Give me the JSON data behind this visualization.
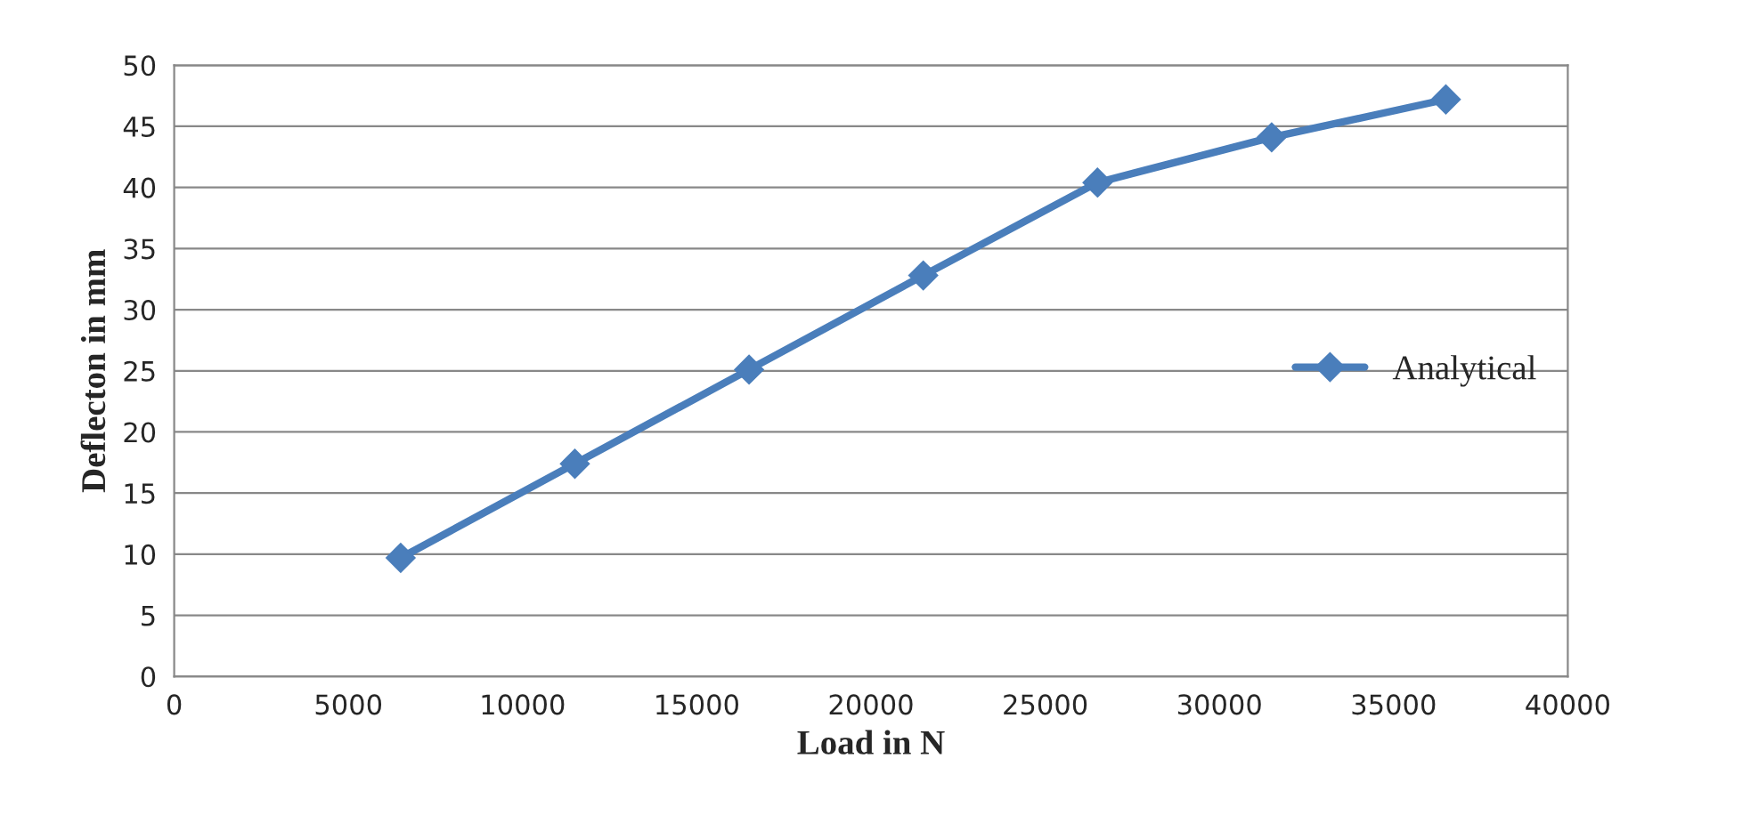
{
  "chart_data": {
    "type": "line",
    "xlabel": "Load in N",
    "ylabel": "Deflecton in mm",
    "x": [
      6500,
      11500,
      16500,
      21500,
      26500,
      31500,
      36500
    ],
    "series": [
      {
        "name": "Analytical",
        "color": "#4a7ebb",
        "values": [
          9.7,
          17.4,
          25.1,
          32.8,
          40.4,
          44.1,
          47.2
        ]
      }
    ],
    "xlim": [
      0,
      40000
    ],
    "xticks": [
      0,
      5000,
      10000,
      15000,
      20000,
      25000,
      30000,
      35000,
      40000
    ],
    "ylim": [
      0,
      50
    ],
    "yticks": [
      0,
      5,
      10,
      15,
      20,
      25,
      30,
      35,
      40,
      45,
      50
    ],
    "grid": "y",
    "legend": "right",
    "marker": "diamond",
    "line_style": "solid"
  }
}
